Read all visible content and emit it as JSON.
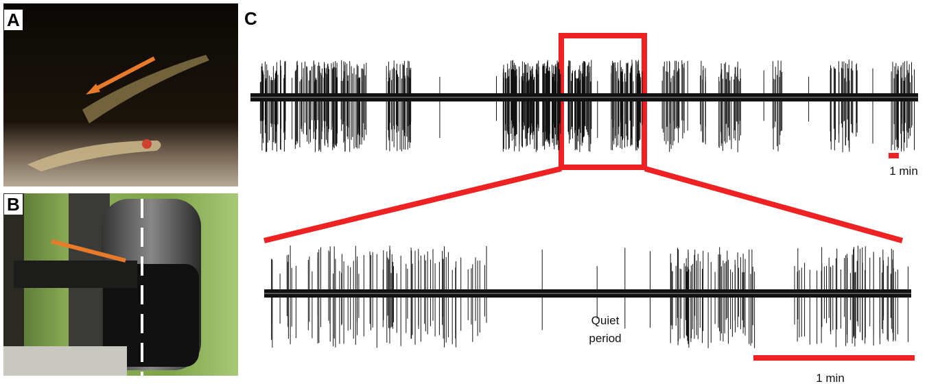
{
  "panels": {
    "A": {
      "label": "A"
    },
    "B": {
      "label": "B"
    },
    "C": {
      "label": "C",
      "scale_bar_top": "1 min",
      "annotation": "Quiet period",
      "scale_bar_bottom": "1 min"
    }
  }
}
